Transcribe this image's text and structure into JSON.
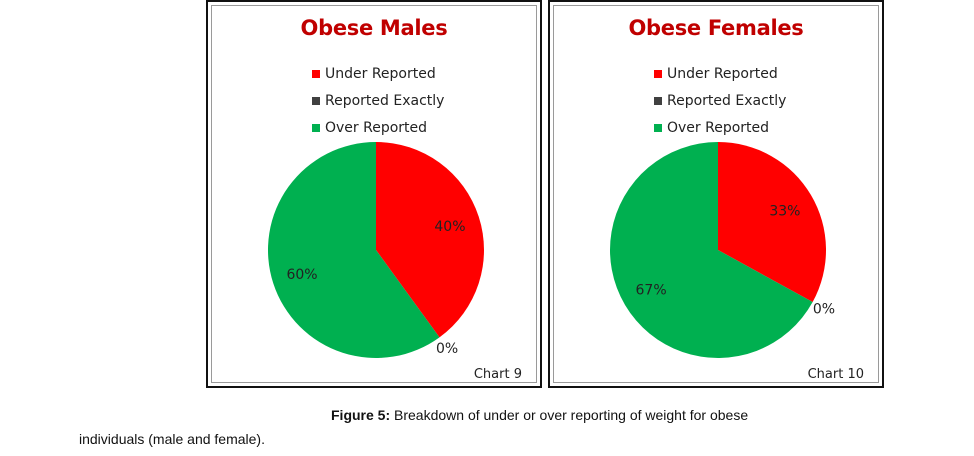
{
  "chart_data": [
    {
      "type": "pie",
      "title": "Obese Males",
      "categories": [
        "Under Reported",
        "Reported Exactly",
        "Over Reported"
      ],
      "values": [
        40,
        0,
        60
      ],
      "labels": [
        "40%",
        "0%",
        "60%"
      ],
      "colors": [
        "#ff0000",
        "#404040",
        "#00b050"
      ],
      "legend": "top",
      "chart_number": "Chart 9"
    },
    {
      "type": "pie",
      "title": "Obese Females",
      "categories": [
        "Under Reported",
        "Reported Exactly",
        "Over Reported"
      ],
      "values": [
        33,
        0,
        67
      ],
      "labels": [
        "33%",
        "0%",
        "67%"
      ],
      "colors": [
        "#ff0000",
        "#404040",
        "#00b050"
      ],
      "legend": "top",
      "chart_number": "Chart 10"
    }
  ],
  "caption": {
    "label": "Figure 5:",
    "line1": " Breakdown of under or over reporting of weight for obese",
    "line2": "individuals (male and female)."
  }
}
